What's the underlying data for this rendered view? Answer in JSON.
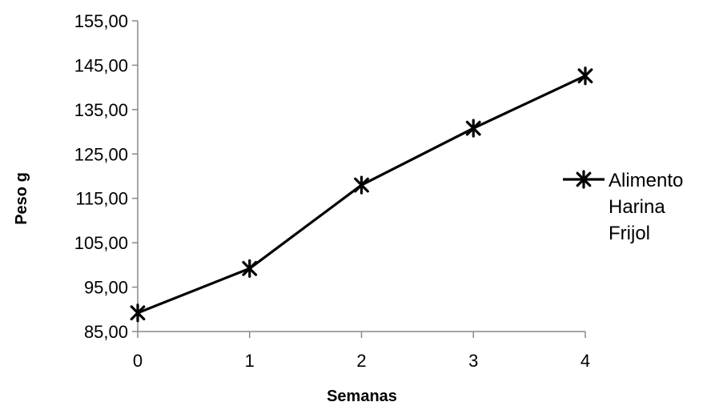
{
  "chart_data": {
    "type": "line",
    "title": "",
    "xlabel": "Semanas",
    "ylabel": "Peso g",
    "x": [
      0,
      1,
      2,
      3,
      4
    ],
    "x_tick_labels": [
      "0",
      "1",
      "2",
      "3",
      "4"
    ],
    "ylim": [
      85,
      155
    ],
    "y_ticks": [
      85,
      95,
      105,
      115,
      125,
      135,
      145,
      155
    ],
    "y_tick_labels": [
      "85,00",
      "95,00",
      "105,00",
      "115,00",
      "125,00",
      "135,00",
      "145,00",
      "155,00"
    ],
    "series": [
      {
        "name": "Alimento Harina Frijol",
        "legend_lines": [
          "Alimento",
          "Harina",
          "Frijol"
        ],
        "values": [
          89.2,
          99.2,
          118.0,
          130.8,
          142.6
        ],
        "color": "#000000",
        "marker": "asterisk"
      }
    ],
    "grid": false,
    "legend_position": "right"
  }
}
